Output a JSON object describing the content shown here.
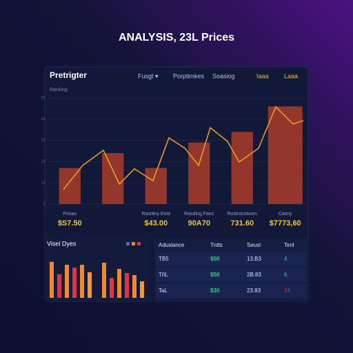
{
  "header": {
    "title": "ANALYSIS, 23L Prices"
  },
  "panel": {
    "title": "Pretrigter",
    "nav": [
      "Fusgt ▾",
      "Porptimkes",
      "Soasiog",
      "Iaaa",
      "Laaa"
    ],
    "subtitle": "Ranking"
  },
  "chart_data": [
    {
      "type": "bar",
      "categories": [
        "Posas",
        null,
        "Rasrtiny Eost",
        "Rasding Faos",
        "Rostrocotvorn",
        "Casny"
      ],
      "price_labels": [
        "$S7.50",
        null,
        "$43.00",
        "90A70",
        "731.60",
        "$7773,60"
      ],
      "ylim": [
        0,
        50
      ],
      "yticks": [
        0,
        10,
        20,
        30,
        40,
        50
      ],
      "grid": true,
      "series": [
        {
          "type": "bar",
          "color": "#a33a2b",
          "values": [
            17,
            24,
            17,
            29,
            34,
            46
          ]
        },
        {
          "type": "line",
          "color": "#f2a323",
          "xlim": [
            0,
            6
          ],
          "x": [
            0.35,
            0.8,
            1.28,
            1.65,
            2.0,
            2.43,
            2.8,
            3.17,
            3.49,
            3.76,
            4.16,
            4.43,
            4.88,
            5.28,
            5.68,
            5.92
          ],
          "values": [
            6.8,
            18.2,
            25.3,
            9.4,
            16.6,
            11,
            31.2,
            26.3,
            18.2,
            36,
            29.5,
            19.8,
            26.3,
            45.8,
            37.7,
            39.3
          ]
        }
      ]
    },
    {
      "type": "bar",
      "title": "Visel Dyes",
      "ylim": [
        0,
        10
      ],
      "values": [
        8.7,
        5.7,
        8,
        7.3,
        8,
        6.2,
        8.5,
        4.8,
        7,
        6,
        5.5,
        4
      ],
      "colors": [
        "#f08a2a",
        "#e0344a",
        "#f08a2a",
        "#e0344a",
        "#f08a2a",
        "#f59a2a",
        "#f08a2a",
        "#e0344a",
        "#f08a2a",
        "#e0344a",
        "#f08a2a",
        "#f59a2a"
      ]
    }
  ],
  "table": {
    "header": [
      "Aduslance",
      "Tntts",
      "Seusl",
      "Tenl"
    ],
    "rows": [
      [
        "TB5",
        "$50",
        "13.B3",
        "4"
      ],
      [
        "TñL",
        "$50",
        "2B.83",
        "6"
      ],
      [
        "TaL",
        "$30",
        "23.83",
        "14"
      ]
    ],
    "colors": [
      "#dfe4ff",
      "#35d07a",
      "#dfe4ff",
      "#35d07a"
    ],
    "last_colors": [
      "#35d07a",
      "#35d07a",
      "#e0344a"
    ]
  }
}
